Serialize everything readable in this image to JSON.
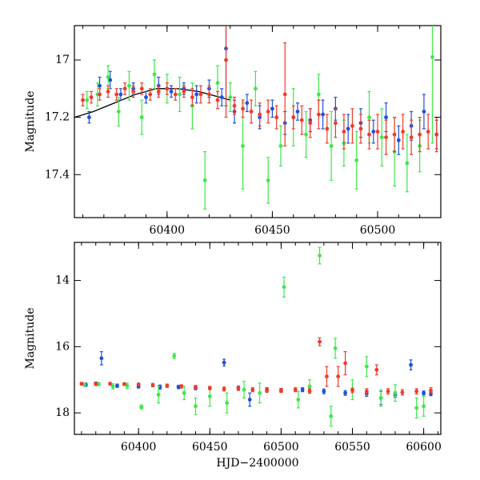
{
  "chart_data": [
    {
      "type": "scatter",
      "title": "",
      "xlabel": "",
      "ylabel": "Magnitude",
      "xlim": [
        60356,
        60530
      ],
      "ylim": [
        17.55,
        16.88
      ],
      "y_inverted": true,
      "x_ticks": [
        60400,
        60450,
        60500
      ],
      "y_ticks": [
        17,
        17.2,
        17.4
      ],
      "y_tick_labels": [
        "17",
        "17.2",
        "17.4"
      ],
      "series_colors": {
        "blue": "#1f4fe0",
        "green": "#3ee84a",
        "red": "#f23a2a"
      },
      "model_curve": {
        "color": "#000000",
        "x": [
          60356,
          60365,
          60375,
          60385,
          60395,
          60405,
          60415,
          60425,
          60430
        ],
        "y": [
          17.2,
          17.18,
          17.15,
          17.12,
          17.1,
          17.1,
          17.11,
          17.13,
          17.14
        ]
      },
      "series": [
        {
          "color": "blue",
          "x": [
            60363,
            60368,
            60373,
            60378,
            60384,
            60390,
            60396,
            60402,
            60408,
            60414,
            60420,
            60426,
            60428,
            60432,
            60438,
            60444,
            60450,
            60456,
            60462,
            60468,
            60474,
            60480,
            60486,
            60492,
            60498,
            60504,
            60510,
            60516,
            60522,
            60528
          ],
          "y": [
            17.2,
            17.09,
            17.07,
            17.12,
            17.1,
            17.13,
            17.09,
            17.11,
            17.1,
            17.12,
            17.1,
            17.13,
            16.96,
            17.18,
            17.15,
            17.2,
            17.17,
            17.22,
            17.18,
            17.21,
            17.19,
            17.17,
            17.24,
            17.22,
            17.25,
            17.2,
            17.28,
            17.23,
            17.18,
            17.26
          ],
          "err": [
            0.02,
            0.03,
            0.03,
            0.02,
            0.02,
            0.02,
            0.03,
            0.02,
            0.02,
            0.03,
            0.03,
            0.03,
            0.2,
            0.04,
            0.03,
            0.04,
            0.03,
            0.04,
            0.03,
            0.04,
            0.05,
            0.04,
            0.05,
            0.05,
            0.04,
            0.05,
            0.05,
            0.05,
            0.06,
            0.05
          ]
        },
        {
          "color": "green",
          "x": [
            60362,
            60367,
            60372,
            60377,
            60382,
            60388,
            60394,
            60400,
            60406,
            60412,
            60418,
            60424,
            60430,
            60436,
            60442,
            60448,
            60454,
            60460,
            60466,
            60472,
            60478,
            60484,
            60490,
            60496,
            60502,
            60508,
            60514,
            60520,
            60526
          ],
          "y": [
            17.14,
            17.12,
            17.06,
            17.18,
            17.09,
            17.2,
            17.05,
            17.1,
            17.12,
            17.16,
            17.42,
            17.08,
            17.13,
            17.3,
            17.1,
            17.42,
            17.3,
            17.2,
            17.26,
            17.12,
            17.3,
            17.29,
            17.35,
            17.2,
            17.27,
            17.32,
            17.36,
            17.3,
            16.99
          ],
          "err": [
            0.03,
            0.04,
            0.04,
            0.05,
            0.05,
            0.06,
            0.05,
            0.05,
            0.06,
            0.08,
            0.1,
            0.06,
            0.05,
            0.15,
            0.06,
            0.08,
            0.07,
            0.1,
            0.08,
            0.07,
            0.12,
            0.08,
            0.1,
            0.09,
            0.1,
            0.12,
            0.1,
            0.09,
            0.3
          ]
        },
        {
          "color": "red",
          "x": [
            60360,
            60364,
            60368,
            60372,
            60376,
            60380,
            60384,
            60388,
            60392,
            60396,
            60400,
            60404,
            60408,
            60412,
            60416,
            60420,
            60424,
            60428,
            60432,
            60436,
            60440,
            60444,
            60448,
            60452,
            60456,
            60460,
            60464,
            60468,
            60472,
            60476,
            60480,
            60484,
            60488,
            60492,
            60496,
            60500,
            60504,
            60508,
            60512,
            60516,
            60520,
            60524,
            60528
          ],
          "y": [
            17.14,
            17.13,
            17.12,
            17.11,
            17.12,
            17.1,
            17.11,
            17.1,
            17.12,
            17.11,
            17.1,
            17.12,
            17.11,
            17.13,
            17.12,
            17.12,
            17.14,
            17.0,
            17.16,
            17.17,
            17.18,
            17.19,
            17.18,
            17.2,
            17.12,
            17.2,
            17.21,
            17.22,
            17.19,
            17.24,
            17.22,
            17.25,
            17.23,
            17.24,
            17.26,
            17.25,
            17.27,
            17.26,
            17.25,
            17.27,
            17.26,
            17.25,
            17.26
          ],
          "err": [
            0.02,
            0.02,
            0.02,
            0.02,
            0.02,
            0.02,
            0.02,
            0.02,
            0.02,
            0.02,
            0.02,
            0.02,
            0.02,
            0.03,
            0.03,
            0.03,
            0.03,
            0.2,
            0.03,
            0.03,
            0.04,
            0.04,
            0.04,
            0.04,
            0.18,
            0.04,
            0.05,
            0.05,
            0.05,
            0.05,
            0.05,
            0.06,
            0.06,
            0.05,
            0.05,
            0.06,
            0.06,
            0.06,
            0.06,
            0.06,
            0.06,
            0.06,
            0.06
          ]
        }
      ]
    },
    {
      "type": "scatter",
      "title": "",
      "xlabel": "HJD−2400000",
      "ylabel": "Magnitude",
      "xlim": [
        60355,
        60612
      ],
      "ylim": [
        18.65,
        12.85
      ],
      "y_inverted": true,
      "x_ticks": [
        60400,
        60450,
        60500,
        60550,
        60600
      ],
      "y_ticks": [
        14,
        16,
        18
      ],
      "y_tick_labels": [
        "14",
        "16",
        "18"
      ],
      "series_colors": {
        "blue": "#1f4fe0",
        "green": "#3ee84a",
        "red": "#f23a2a"
      },
      "series": [
        {
          "color": "blue",
          "x": [
            60363,
            60370,
            60374,
            60385,
            60400,
            60415,
            60428,
            60440,
            60460,
            60470,
            60478,
            60490,
            60500,
            60515,
            60530,
            60545,
            60560,
            60570,
            60580,
            60591,
            60600,
            60605
          ],
          "y": [
            17.15,
            17.12,
            16.35,
            17.18,
            17.2,
            17.22,
            17.22,
            17.25,
            16.48,
            17.25,
            17.6,
            17.3,
            17.33,
            17.3,
            17.35,
            17.4,
            17.42,
            17.55,
            17.45,
            16.55,
            17.4,
            17.42
          ],
          "err": [
            0.05,
            0.05,
            0.2,
            0.05,
            0.05,
            0.06,
            0.05,
            0.05,
            0.1,
            0.06,
            0.2,
            0.06,
            0.05,
            0.06,
            0.07,
            0.07,
            0.08,
            0.2,
            0.08,
            0.15,
            0.06,
            0.06
          ]
        },
        {
          "color": "green",
          "x": [
            60362,
            60372,
            60382,
            60392,
            60402,
            60414,
            60425,
            60432,
            60440,
            60450,
            60462,
            60474,
            60485,
            60502,
            60512,
            60520,
            60527,
            60535,
            60538,
            60550,
            60560,
            60570,
            60580,
            60595,
            60600
          ],
          "y": [
            17.15,
            17.13,
            17.2,
            17.18,
            17.82,
            17.45,
            16.28,
            17.4,
            17.8,
            17.5,
            17.7,
            17.3,
            17.4,
            14.2,
            17.6,
            17.2,
            13.25,
            18.1,
            16.05,
            17.3,
            16.6,
            17.55,
            17.4,
            17.85,
            17.8
          ],
          "err": [
            0.05,
            0.05,
            0.08,
            0.08,
            0.06,
            0.25,
            0.08,
            0.2,
            0.25,
            0.3,
            0.3,
            0.25,
            0.3,
            0.3,
            0.25,
            0.2,
            0.25,
            0.3,
            0.3,
            0.3,
            0.3,
            0.25,
            0.25,
            0.3,
            0.3
          ]
        },
        {
          "color": "red",
          "x": [
            60360,
            60370,
            60380,
            60390,
            60400,
            60410,
            60420,
            60430,
            60440,
            60450,
            60460,
            60470,
            60480,
            60490,
            60500,
            60510,
            60520,
            60527,
            60532,
            60540,
            60545,
            60550,
            60560,
            60567,
            60575,
            60585,
            60595,
            60605
          ],
          "y": [
            17.12,
            17.13,
            17.12,
            17.13,
            17.14,
            17.16,
            17.18,
            17.2,
            17.22,
            17.25,
            17.28,
            17.26,
            17.3,
            17.32,
            17.32,
            17.3,
            17.34,
            15.85,
            16.9,
            16.9,
            16.5,
            17.32,
            17.35,
            16.7,
            17.35,
            17.38,
            17.35,
            17.32
          ],
          "err": [
            0.04,
            0.04,
            0.04,
            0.04,
            0.04,
            0.05,
            0.05,
            0.05,
            0.05,
            0.05,
            0.06,
            0.06,
            0.06,
            0.06,
            0.06,
            0.06,
            0.07,
            0.12,
            0.3,
            0.3,
            0.35,
            0.07,
            0.08,
            0.15,
            0.08,
            0.08,
            0.08,
            0.08
          ]
        }
      ]
    }
  ]
}
